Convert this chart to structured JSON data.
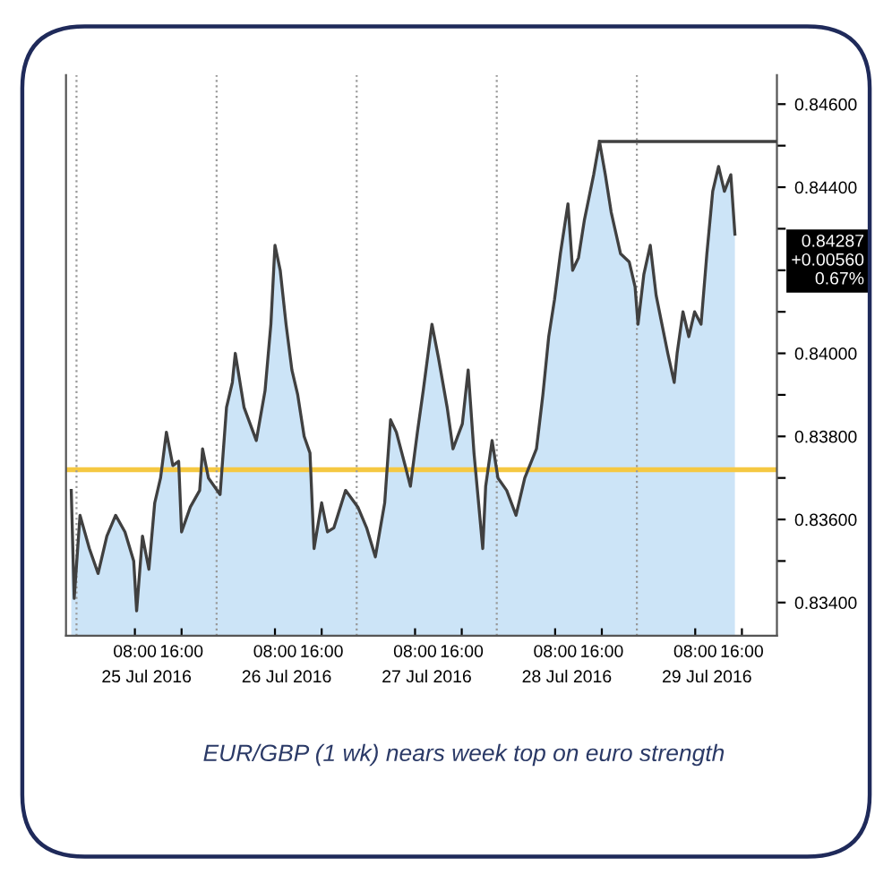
{
  "chart_data": {
    "type": "area",
    "title": "EUR/GBP (1 wk) nears week top on euro strength",
    "xlim": [
      "2016-07-24T20:12",
      "2016-07-29T22:00"
    ],
    "ylim": [
      0.8332,
      0.8467
    ],
    "xticks": [
      {
        "value": "2016-07-25T08:00",
        "label": "08:00"
      },
      {
        "value": "2016-07-25T16:00",
        "label": "16:00"
      },
      {
        "value": "2016-07-26T08:00",
        "label": "08:00"
      },
      {
        "value": "2016-07-26T16:00",
        "label": "16:00"
      },
      {
        "value": "2016-07-27T08:00",
        "label": "08:00"
      },
      {
        "value": "2016-07-27T16:00",
        "label": "16:00"
      },
      {
        "value": "2016-07-28T08:00",
        "label": "08:00"
      },
      {
        "value": "2016-07-28T16:00",
        "label": "16:00"
      },
      {
        "value": "2016-07-29T08:00",
        "label": "08:00"
      },
      {
        "value": "2016-07-29T16:00",
        "label": "16:00"
      }
    ],
    "x2lim": [
      "2016-07-24T20:12",
      "2016-07-29T22:00"
    ],
    "x2ticks": [
      {
        "value": "2016-07-25T10:00",
        "label": "25 Jul 2016"
      },
      {
        "value": "2016-07-26T10:00",
        "label": "26 Jul 2016"
      },
      {
        "value": "2016-07-27T10:00",
        "label": "27 Jul 2016"
      },
      {
        "value": "2016-07-28T10:00",
        "label": "28 Jul 2016"
      },
      {
        "value": "2016-07-29T10:00",
        "label": "29 Jul 2016"
      }
    ],
    "yticks": [
      {
        "value": 0.834,
        "label": "0.83400"
      },
      {
        "value": 0.835,
        "label": null
      },
      {
        "value": 0.836,
        "label": "0.83600"
      },
      {
        "value": 0.837,
        "label": null
      },
      {
        "value": 0.838,
        "label": "0.83800"
      },
      {
        "value": 0.839,
        "label": null
      },
      {
        "value": 0.84,
        "label": "0.84000"
      },
      {
        "value": 0.841,
        "label": null
      },
      {
        "value": 0.842,
        "label": null
      },
      {
        "value": 0.843,
        "label": null
      },
      {
        "value": 0.844,
        "label": "0.84400"
      },
      {
        "value": 0.845,
        "label": null
      },
      {
        "value": 0.846,
        "label": "0.84600"
      }
    ],
    "grid": false,
    "series": [
      {
        "color": "#cce4f7",
        "x": [
          "2016-07-24T21:06",
          "2016-07-24T21:36",
          "2016-07-24T22:36",
          "2016-07-25T00:12",
          "2016-07-25T01:42",
          "2016-07-25T03:12",
          "2016-07-25T04:42",
          "2016-07-25T06:18",
          "2016-07-25T07:48",
          "2016-07-25T08:18",
          "2016-07-25T09:18",
          "2016-07-25T10:24",
          "2016-07-25T11:24",
          "2016-07-25T12:24",
          "2016-07-25T13:24",
          "2016-07-25T14:30",
          "2016-07-25T15:30",
          "2016-07-25T16:00",
          "2016-07-25T17:30",
          "2016-07-25T19:06",
          "2016-07-25T19:36",
          "2016-07-25T20:36",
          "2016-07-25T22:36",
          "2016-07-25T23:42",
          "2016-07-26T00:42",
          "2016-07-26T01:12",
          "2016-07-26T02:42",
          "2016-07-26T04:48",
          "2016-07-26T06:18",
          "2016-07-26T07:18",
          "2016-07-26T08:00",
          "2016-07-26T08:54",
          "2016-07-26T09:54",
          "2016-07-26T10:54",
          "2016-07-26T11:54",
          "2016-07-26T13:00",
          "2016-07-26T14:00",
          "2016-07-26T14:42",
          "2016-07-26T16:00",
          "2016-07-26T17:00",
          "2016-07-26T18:06",
          "2016-07-26T20:06",
          "2016-07-26T22:12",
          "2016-07-26T23:42",
          "2016-07-27T01:12",
          "2016-07-27T02:48",
          "2016-07-27T03:48",
          "2016-07-27T04:48",
          "2016-07-27T06:18",
          "2016-07-27T07:12",
          "2016-07-27T08:24",
          "2016-07-27T09:24",
          "2016-07-27T10:54",
          "2016-07-27T12:00",
          "2016-07-27T13:30",
          "2016-07-27T14:30",
          "2016-07-27T16:06",
          "2016-07-27T17:06",
          "2016-07-27T18:06",
          "2016-07-27T19:36",
          "2016-07-27T20:06",
          "2016-07-27T21:12",
          "2016-07-27T22:12",
          "2016-07-27T23:42",
          "2016-07-28T01:18",
          "2016-07-28T02:48",
          "2016-07-28T04:48",
          "2016-07-28T05:54",
          "2016-07-28T06:54",
          "2016-07-28T07:54",
          "2016-07-28T08:54",
          "2016-07-28T10:12",
          "2016-07-28T11:00",
          "2016-07-28T12:00",
          "2016-07-28T13:00",
          "2016-07-28T14:36",
          "2016-07-28T15:36",
          "2016-07-28T16:36",
          "2016-07-28T17:36",
          "2016-07-28T19:12",
          "2016-07-28T20:42",
          "2016-07-28T21:42",
          "2016-07-28T22:12",
          "2016-07-28T23:12",
          "2016-07-29T00:18",
          "2016-07-29T01:18",
          "2016-07-29T02:18",
          "2016-07-29T03:18",
          "2016-07-29T04:24",
          "2016-07-29T04:54",
          "2016-07-29T05:54",
          "2016-07-29T06:54",
          "2016-07-29T07:54",
          "2016-07-29T09:00",
          "2016-07-29T10:00",
          "2016-07-29T11:00",
          "2016-07-29T12:00",
          "2016-07-29T13:00",
          "2016-07-29T14:06",
          "2016-07-29T14:48"
        ],
        "values": [
          0.8367,
          0.8341,
          0.8361,
          0.8353,
          0.8347,
          0.8356,
          0.8361,
          0.8357,
          0.835,
          0.8338,
          0.8356,
          0.8348,
          0.8364,
          0.837,
          0.8381,
          0.8373,
          0.8374,
          0.8357,
          0.8363,
          0.8367,
          0.8377,
          0.837,
          0.8366,
          0.8387,
          0.8393,
          0.84,
          0.8387,
          0.8379,
          0.8391,
          0.8407,
          0.8426,
          0.842,
          0.8407,
          0.8396,
          0.839,
          0.838,
          0.8376,
          0.8353,
          0.8364,
          0.8357,
          0.8358,
          0.8367,
          0.8363,
          0.8358,
          0.8351,
          0.8364,
          0.8384,
          0.8381,
          0.8373,
          0.8368,
          0.8381,
          0.8391,
          0.8407,
          0.8399,
          0.8387,
          0.8377,
          0.8383,
          0.8396,
          0.8376,
          0.8353,
          0.8368,
          0.8379,
          0.837,
          0.8367,
          0.8361,
          0.837,
          0.8377,
          0.839,
          0.8404,
          0.8413,
          0.8424,
          0.8436,
          0.842,
          0.8423,
          0.8432,
          0.8443,
          0.8451,
          0.8443,
          0.8434,
          0.8424,
          0.8422,
          0.8416,
          0.8407,
          0.8419,
          0.8426,
          0.8414,
          0.8407,
          0.84,
          0.8393,
          0.84,
          0.841,
          0.8404,
          0.841,
          0.8407,
          0.8424,
          0.8439,
          0.8445,
          0.8439,
          0.8443,
          0.84287
        ]
      },
      {
        "type": "line",
        "color": "#404040",
        "x": [
          "2016-07-28T15:36",
          "2016-07-29T22:00"
        ],
        "values": [
          0.8451,
          0.8451
        ]
      }
    ],
    "ref_lines": [
      {
        "axis": "y",
        "value": 0.8372,
        "color": "#f5c842",
        "line_style": "solid"
      },
      {
        "axis": "x",
        "value": "2016-07-24T22:00",
        "color": "#999999",
        "line_style": "dotted"
      },
      {
        "axis": "x",
        "value": "2016-07-25T22:00",
        "color": "#999999",
        "line_style": "dotted"
      },
      {
        "axis": "x",
        "value": "2016-07-26T22:00",
        "color": "#999999",
        "line_style": "dotted"
      },
      {
        "axis": "x",
        "value": "2016-07-27T22:00",
        "color": "#999999",
        "line_style": "dotted"
      },
      {
        "axis": "x",
        "value": "2016-07-28T22:00",
        "color": "#999999",
        "line_style": "dotted"
      }
    ],
    "annotations": [
      "0.84287",
      "+0.00560",
      "0.67%"
    ]
  }
}
